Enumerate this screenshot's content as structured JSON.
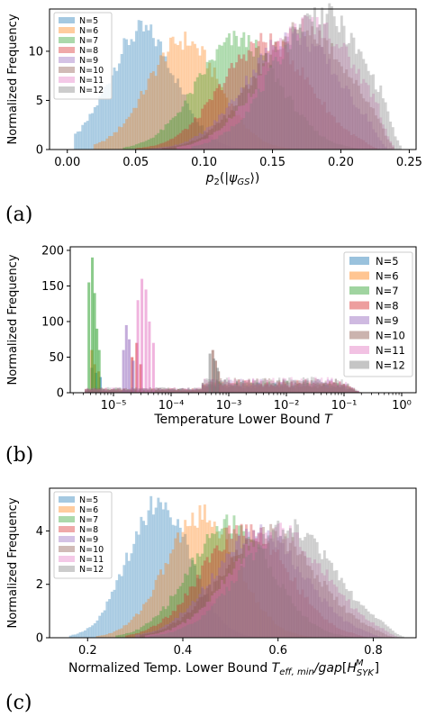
{
  "panel_labels": [
    "(a)",
    "(b)",
    "(c)"
  ],
  "series_colors": [
    "#1f77b4",
    "#ff7f0e",
    "#2ca02c",
    "#d62728",
    "#9467bd",
    "#8c564b",
    "#e377c2",
    "#7f7f7f"
  ],
  "chart_data": [
    {
      "type": "histogram",
      "ylabel": "Normalized Frequency",
      "xlabel": "p₂(|ψGS⟩)",
      "xlim": [
        -0.013,
        0.255
      ],
      "ylim": [
        0,
        14.3
      ],
      "xticks": [
        0.0,
        0.05,
        0.1,
        0.15,
        0.2,
        0.25
      ],
      "xtick_labels": [
        "0.00",
        "0.05",
        "0.10",
        "0.15",
        "0.20",
        "0.25"
      ],
      "yticks": [
        0,
        5,
        10
      ],
      "ytick_labels": [
        "0",
        "5",
        "10"
      ],
      "legend_position": "top-left",
      "series": [
        {
          "name": "N=5",
          "center": 0.055,
          "width": 0.024,
          "peak": 12.1,
          "lo": 0.005,
          "hi": 0.17
        },
        {
          "name": "N=6",
          "center": 0.085,
          "width": 0.026,
          "peak": 11.1,
          "lo": 0.02,
          "hi": 0.19
        },
        {
          "name": "N=7",
          "center": 0.125,
          "width": 0.03,
          "peak": 11.2,
          "lo": 0.04,
          "hi": 0.22
        },
        {
          "name": "N=8",
          "center": 0.145,
          "width": 0.032,
          "peak": 11.0,
          "lo": 0.05,
          "hi": 0.23
        },
        {
          "name": "N=9",
          "center": 0.165,
          "width": 0.034,
          "peak": 11.6,
          "lo": 0.06,
          "hi": 0.235
        },
        {
          "name": "N=10",
          "center": 0.172,
          "width": 0.035,
          "peak": 12.3,
          "lo": 0.07,
          "hi": 0.24
        },
        {
          "name": "N=11",
          "center": 0.178,
          "width": 0.035,
          "peak": 12.8,
          "lo": 0.08,
          "hi": 0.24
        },
        {
          "name": "N=12",
          "center": 0.185,
          "width": 0.034,
          "peak": 13.8,
          "lo": 0.09,
          "hi": 0.245
        }
      ]
    },
    {
      "type": "histogram",
      "ylabel": "Normalized Frequency",
      "xlabel": "Temperature Lower Bound T",
      "xscale": "log",
      "xlim_log10": [
        -5.75,
        0.25
      ],
      "ylim": [
        0,
        205
      ],
      "xticks_log10": [
        -5,
        -4,
        -3,
        -2,
        -1,
        0
      ],
      "xtick_labels": [
        "10⁻⁵",
        "10⁻⁴",
        "10⁻³",
        "10⁻²",
        "10⁻¹",
        "10⁰"
      ],
      "yticks": [
        0,
        50,
        100,
        150,
        200
      ],
      "ytick_labels": [
        "0",
        "50",
        "100",
        "150",
        "200"
      ],
      "legend_position": "top-right",
      "series": [
        {
          "name": "N=5",
          "spikes": [
            [
              -5.4,
              35
            ],
            [
              -5.33,
              28
            ],
            [
              -5.25,
              22
            ]
          ],
          "plateau": 10
        },
        {
          "name": "N=6",
          "spikes": [
            [
              -5.4,
              60
            ],
            [
              -5.35,
              40
            ],
            [
              -5.28,
              30
            ]
          ],
          "plateau": 11
        },
        {
          "name": "N=7",
          "spikes": [
            [
              -5.45,
              155
            ],
            [
              -5.39,
              190
            ],
            [
              -5.35,
              140
            ],
            [
              -5.31,
              90
            ],
            [
              -5.27,
              60
            ]
          ],
          "plateau": 12
        },
        {
          "name": "N=8",
          "spikes": [
            [
              -4.7,
              50
            ],
            [
              -4.62,
              70
            ],
            [
              -4.55,
              40
            ]
          ],
          "plateau": 13
        },
        {
          "name": "N=9",
          "spikes": [
            [
              -4.85,
              60
            ],
            [
              -4.8,
              95
            ],
            [
              -4.75,
              75
            ],
            [
              -4.68,
              45
            ]
          ],
          "plateau": 14
        },
        {
          "name": "N=10",
          "spikes": [
            [
              -3.3,
              60
            ],
            [
              -3.25,
              45
            ],
            [
              -3.2,
              30
            ]
          ],
          "plateau": 15
        },
        {
          "name": "N=11",
          "spikes": [
            [
              -4.6,
              130
            ],
            [
              -4.53,
              160
            ],
            [
              -4.46,
              145
            ],
            [
              -4.4,
              100
            ],
            [
              -4.33,
              70
            ]
          ],
          "plateau": 16
        },
        {
          "name": "N=12",
          "spikes": [
            [
              -3.35,
              55
            ],
            [
              -3.28,
              48
            ],
            [
              -3.22,
              35
            ]
          ],
          "plateau": 16
        }
      ]
    },
    {
      "type": "histogram",
      "ylabel": "Normalized Frequency",
      "xlabel": "Normalized Temp. Lower Bound Teff,min/gap[HSYKM]",
      "xlim": [
        0.12,
        0.89
      ],
      "ylim": [
        0,
        5.6
      ],
      "xticks": [
        0.2,
        0.4,
        0.6,
        0.8
      ],
      "xtick_labels": [
        "0.2",
        "0.4",
        "0.6",
        "0.8"
      ],
      "yticks": [
        0,
        2,
        4
      ],
      "ytick_labels": [
        "0",
        "2",
        "4"
      ],
      "legend_position": "top-left",
      "series": [
        {
          "name": "N=5",
          "center": 0.35,
          "width": 0.065,
          "peak": 5.1,
          "lo": 0.16,
          "hi": 0.62
        },
        {
          "name": "N=6",
          "center": 0.44,
          "width": 0.075,
          "peak": 4.6,
          "lo": 0.22,
          "hi": 0.72
        },
        {
          "name": "N=7",
          "center": 0.5,
          "width": 0.085,
          "peak": 4.3,
          "lo": 0.26,
          "hi": 0.78
        },
        {
          "name": "N=8",
          "center": 0.53,
          "width": 0.09,
          "peak": 4.1,
          "lo": 0.28,
          "hi": 0.8
        },
        {
          "name": "N=9",
          "center": 0.56,
          "width": 0.095,
          "peak": 3.9,
          "lo": 0.3,
          "hi": 0.83
        },
        {
          "name": "N=10",
          "center": 0.58,
          "width": 0.1,
          "peak": 3.9,
          "lo": 0.31,
          "hi": 0.85
        },
        {
          "name": "N=11",
          "center": 0.6,
          "width": 0.1,
          "peak": 4.0,
          "lo": 0.32,
          "hi": 0.86
        },
        {
          "name": "N=12",
          "center": 0.62,
          "width": 0.1,
          "peak": 4.1,
          "lo": 0.33,
          "hi": 0.87
        }
      ]
    }
  ]
}
